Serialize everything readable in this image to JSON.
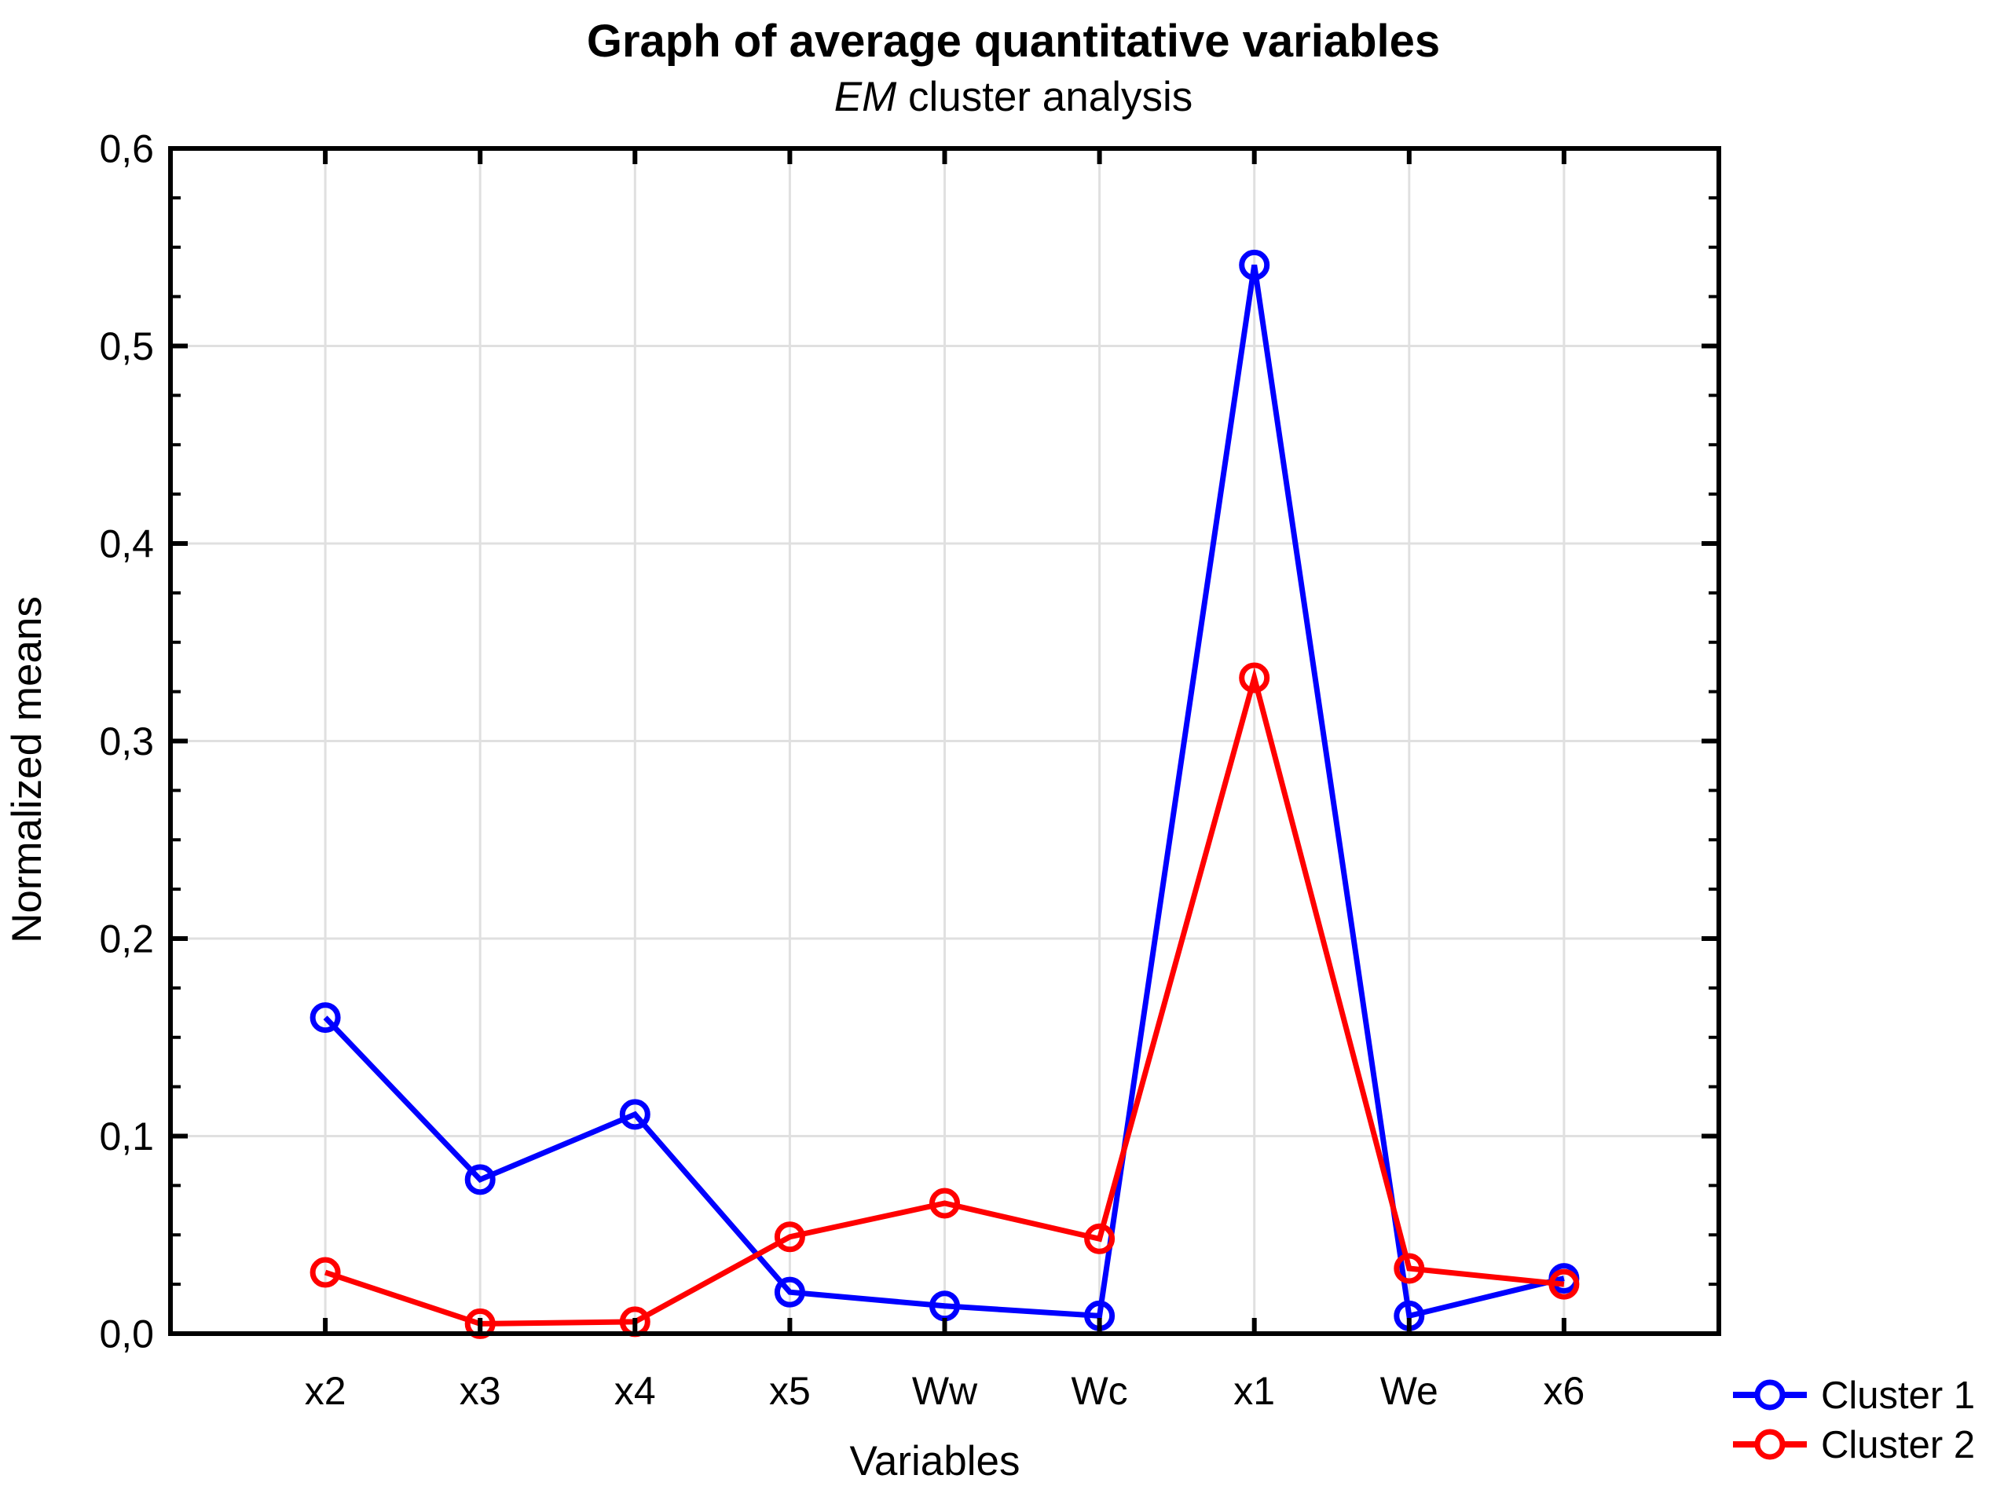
{
  "chart_data": {
    "type": "line",
    "title": "Graph of average quantitative variables",
    "subtitle": {
      "italic": "EM",
      "rest": " cluster analysis"
    },
    "xlabel": "Variables",
    "ylabel": "Normalized means",
    "categories": [
      "x2",
      "x3",
      "x4",
      "x5",
      "Ww",
      "Wc",
      "x1",
      "We",
      "x6"
    ],
    "series": [
      {
        "name": "Cluster 1",
        "color": "#0000ff",
        "marker": "open-circle",
        "values": [
          0.16,
          0.078,
          0.111,
          0.021,
          0.014,
          0.009,
          0.541,
          0.009,
          0.028
        ]
      },
      {
        "name": "Cluster 2",
        "color": "#ff0000",
        "marker": "open-circle",
        "values": [
          0.031,
          0.005,
          0.006,
          0.049,
          0.066,
          0.048,
          0.332,
          0.033,
          0.025
        ]
      }
    ],
    "ylim": [
      0.0,
      0.6
    ],
    "ytick_major_step": 0.1,
    "ytick_minor_step": 0.025,
    "yticklabels": [
      "0,0",
      "0,1",
      "0,2",
      "0,3",
      "0,4",
      "0,5",
      "0,6"
    ],
    "decimal_separator": ",",
    "grid": {
      "horizontal_major": true,
      "vertical_category": true,
      "color": "#e0e0e0"
    },
    "frame_color": "#000000",
    "legend_position": "bottom-right"
  }
}
